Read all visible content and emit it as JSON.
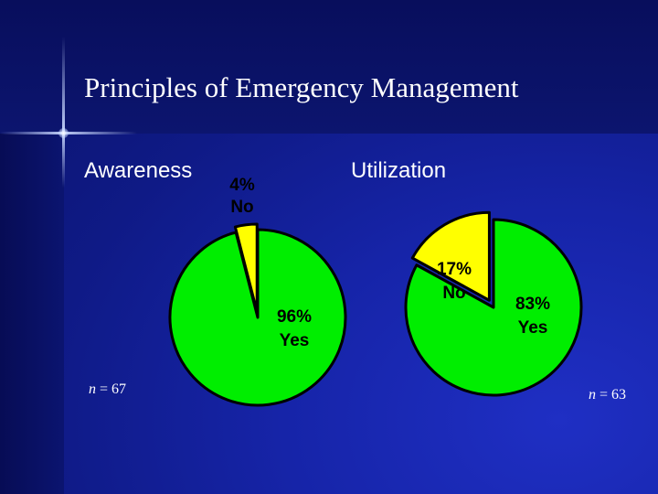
{
  "slide": {
    "title": "Principles of Emergency Management"
  },
  "colors": {
    "yes": "#00ee00",
    "no": "#ffff00",
    "outline": "#000000",
    "background": "#1624a8",
    "text": "#ffffff"
  },
  "chart_data": [
    {
      "type": "pie",
      "title": "Awareness",
      "slices": [
        {
          "label": "No",
          "value": 4,
          "display": "4%",
          "color": "#ffff00"
        },
        {
          "label": "Yes",
          "value": 96,
          "display": "96%",
          "color": "#00ee00"
        }
      ],
      "note_prefix": "n",
      "note_value": "= 67"
    },
    {
      "type": "pie",
      "title": "Utilization",
      "slices": [
        {
          "label": "No",
          "value": 17,
          "display": "17%",
          "color": "#ffff00"
        },
        {
          "label": "Yes",
          "value": 83,
          "display": "83%",
          "color": "#00ee00"
        }
      ],
      "note_prefix": "n",
      "note_value": "= 63"
    }
  ]
}
